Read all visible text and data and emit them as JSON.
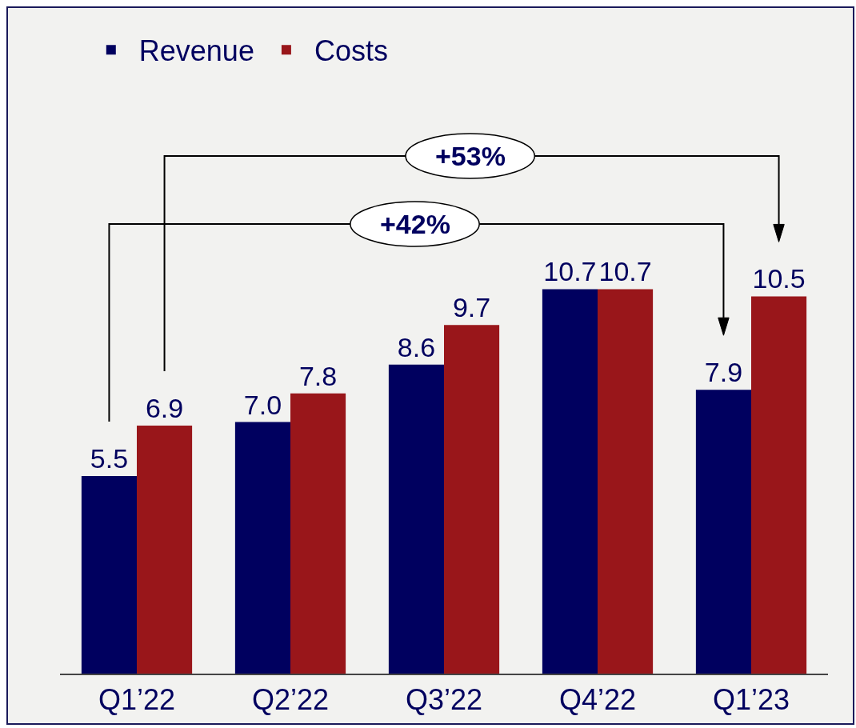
{
  "chart_data": {
    "type": "bar",
    "categories": [
      "Q1’22",
      "Q2’22",
      "Q3’22",
      "Q4’22",
      "Q1’23"
    ],
    "series": [
      {
        "name": "Revenue",
        "color": "#00005f",
        "values": [
          5.5,
          7.0,
          8.6,
          10.7,
          7.9
        ],
        "value_labels": [
          "5.5",
          "7.0",
          "8.6",
          "10.7",
          "7.9"
        ]
      },
      {
        "name": "Costs",
        "color": "#99161a",
        "values": [
          6.9,
          7.8,
          9.7,
          10.7,
          10.5
        ],
        "value_labels": [
          "6.9",
          "7.8",
          "9.7",
          "10.7",
          "10.5"
        ]
      }
    ],
    "annotations": [
      "+53%",
      "+42%"
    ],
    "legend": "top left"
  }
}
